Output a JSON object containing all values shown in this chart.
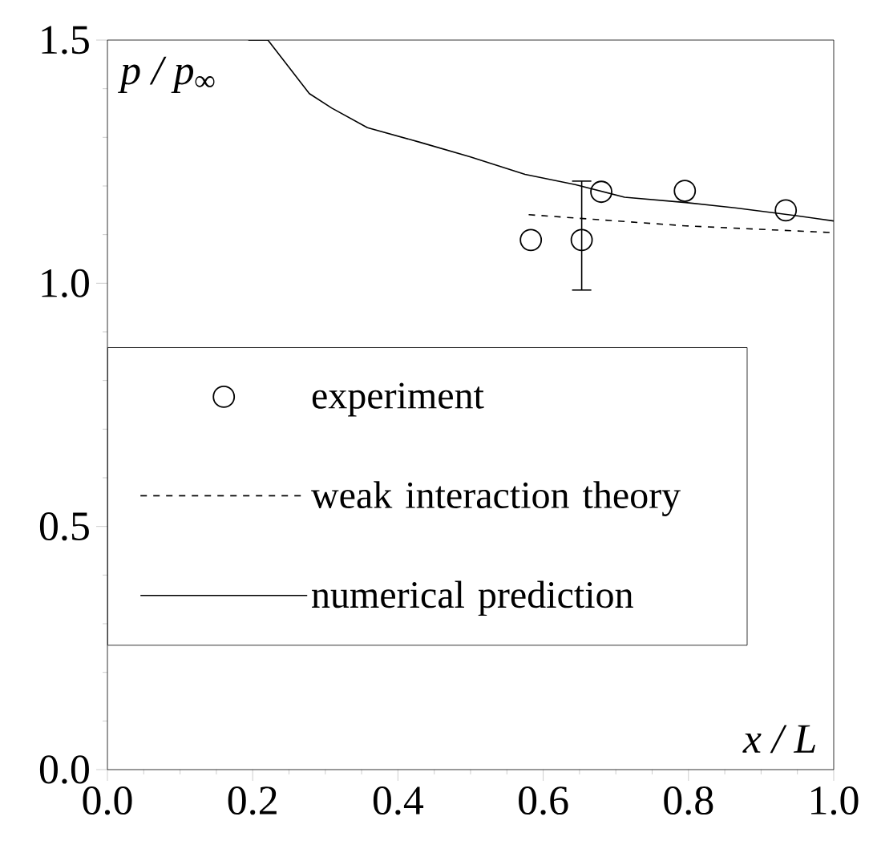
{
  "chart_data": {
    "type": "line",
    "xlabel": "x / L",
    "ylabel": "p / p$_{∞}$",
    "xlim": [
      0.0,
      1.0
    ],
    "ylim": [
      0.0,
      1.5
    ],
    "xticks": [
      {
        "value": 0.0,
        "label": "0.0"
      },
      0.2,
      0.4,
      0.6,
      0.8,
      {
        "value": 1.0,
        "label": "1.0"
      }
    ],
    "yticks": [
      {
        "value": 0.0,
        "label": "0.0"
      },
      0.5,
      {
        "value": 1.0,
        "label": "1.0"
      },
      1.5
    ],
    "legend": "left",
    "grid": false,
    "series": [
      {
        "name": "experiment",
        "type": "scatter",
        "marker": "circle",
        "color": "#000000",
        "x": [
          0.583,
          0.653,
          0.68,
          0.795,
          0.934
        ],
        "values": [
          1.089,
          1.089,
          1.188,
          1.19,
          1.15
        ],
        "errors": [
          null,
          [
            0.986,
            1.21
          ],
          null,
          null,
          null
        ]
      },
      {
        "name": "weak interaction theory",
        "line_style": "dashed",
        "color": "#000000",
        "x": [
          0.58,
          0.796,
          1.0
        ],
        "values": [
          1.141,
          1.118,
          1.104
        ]
      },
      {
        "name": "numerical prediction",
        "line_style": "solid",
        "color": "#000000",
        "x": [
          0.194,
          0.221,
          0.278,
          0.309,
          0.358,
          0.43,
          0.499,
          0.575,
          0.644,
          0.712,
          0.796,
          0.864,
          0.948,
          1.0
        ],
        "values": [
          1.5,
          1.5,
          1.39,
          1.36,
          1.32,
          1.29,
          1.26,
          1.224,
          1.203,
          1.177,
          1.166,
          1.155,
          1.139,
          1.128
        ]
      }
    ]
  }
}
